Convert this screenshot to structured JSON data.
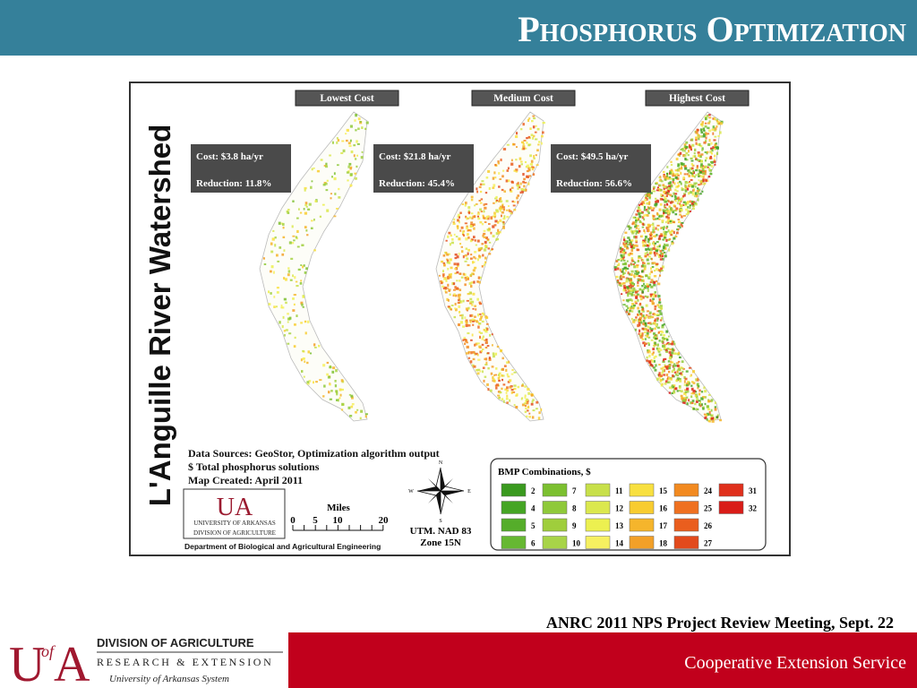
{
  "header": {
    "title": "Phosphorus Optimization"
  },
  "map": {
    "side_title": "L'Anguille River Watershed",
    "panels": [
      {
        "label": "Lowest Cost",
        "cost": "Cost: $3.8 ha/yr",
        "reduction": "Reduction: 11.8%"
      },
      {
        "label": "Medium Cost",
        "cost": "Cost: $21.8 ha/yr",
        "reduction": "Reduction: 45.4%"
      },
      {
        "label": "Highest Cost",
        "cost": "Cost: $49.5 ha/yr",
        "reduction": "Reduction: 56.6%"
      }
    ],
    "notes": [
      "Data Sources: GeoStor, Optimization algorithm output",
      "$ Total phosphorus solutions",
      "Map Created: April 2011"
    ],
    "logo": {
      "mark": "UA",
      "line1": "UNIVERSITY OF ARKANSAS",
      "line2": "DIVISION OF AGRICULTURE"
    },
    "department": "Department of Biological and Agricultural Engineering",
    "scale": {
      "title": "Miles",
      "ticks": [
        "0",
        "5",
        "10",
        "20"
      ]
    },
    "compass": {
      "n": "N",
      "s": "S",
      "e": "E",
      "w": "W"
    },
    "projection": [
      "UTM. NAD 83",
      "Zone 15N"
    ],
    "legend": {
      "title": "BMP Combinations, $",
      "items": [
        {
          "label": "2",
          "color": "#3a9a1f"
        },
        {
          "label": "4",
          "color": "#45a524"
        },
        {
          "label": "5",
          "color": "#55ad2a"
        },
        {
          "label": "6",
          "color": "#66b832"
        },
        {
          "label": "7",
          "color": "#7cc030"
        },
        {
          "label": "8",
          "color": "#8fc93a"
        },
        {
          "label": "9",
          "color": "#9fce3c"
        },
        {
          "label": "10",
          "color": "#a8d448"
        },
        {
          "label": "11",
          "color": "#c8e04a"
        },
        {
          "label": "12",
          "color": "#dbe84e"
        },
        {
          "label": "13",
          "color": "#ecf050"
        },
        {
          "label": "14",
          "color": "#f6f060"
        },
        {
          "label": "15",
          "color": "#f8e040"
        },
        {
          "label": "16",
          "color": "#f8cc30"
        },
        {
          "label": "17",
          "color": "#f5b52c"
        },
        {
          "label": "18",
          "color": "#f2a028"
        },
        {
          "label": "24",
          "color": "#f28a20"
        },
        {
          "label": "25",
          "color": "#ef7020"
        },
        {
          "label": "26",
          "color": "#ea5e1e"
        },
        {
          "label": "27",
          "color": "#e24a1c"
        },
        {
          "label": "31",
          "color": "#e0301c"
        },
        {
          "label": "32",
          "color": "#d91c18"
        }
      ]
    }
  },
  "footer": {
    "meeting": "ANRC 2011 NPS Project Review Meeting, Sept. 22",
    "logo_letters": [
      "U",
      "of",
      "A"
    ],
    "division": "DIVISION OF AGRICULTURE",
    "research": "RESEARCH & EXTENSION",
    "system": "University of Arkansas System",
    "service": "Cooperative Extension Service"
  }
}
